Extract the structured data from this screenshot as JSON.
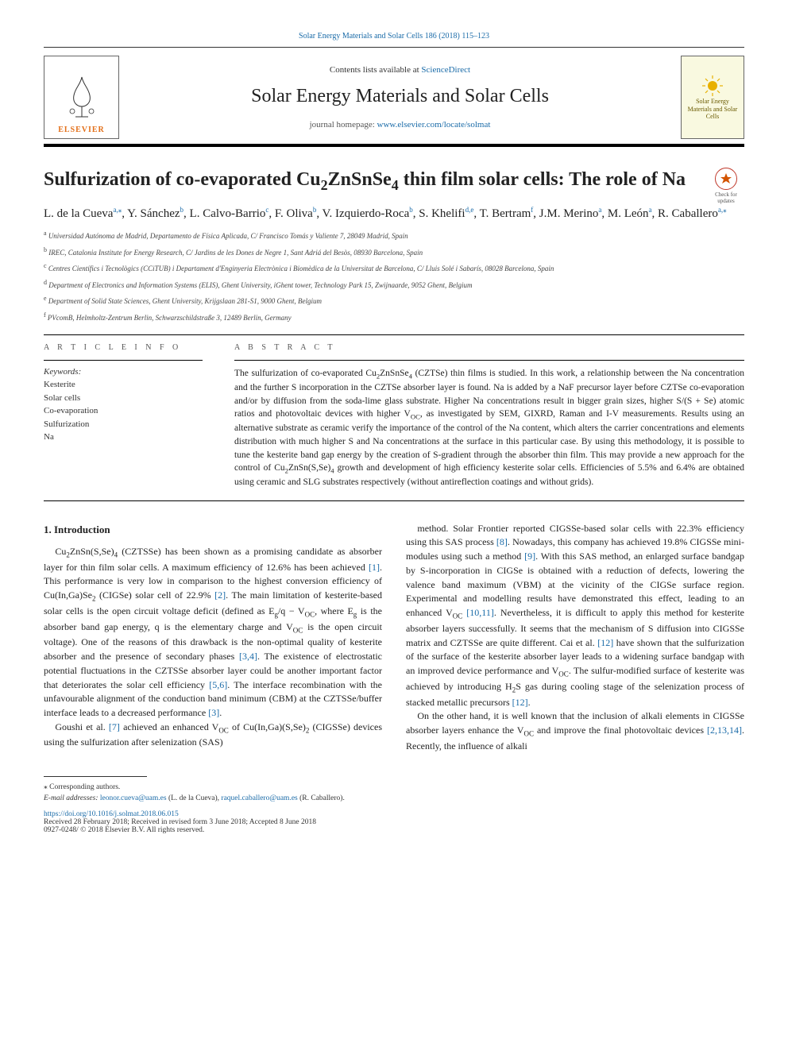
{
  "top_link_full": "Solar Energy Materials and Solar Cells 186 (2018) 115–123",
  "masthead": {
    "publisher": "ELSEVIER",
    "contents_prefix": "Contents lists available at ",
    "contents_link": "ScienceDirect",
    "journal": "Solar Energy Materials and Solar Cells",
    "homepage_prefix": "journal homepage: ",
    "homepage_url": "www.elsevier.com/locate/solmat",
    "cover_label": "Solar Energy Materials and Solar Cells"
  },
  "badge": {
    "text": "Check for updates"
  },
  "title_html": "Sulfurization of co-evaporated Cu<sub>2</sub>ZnSnSe<sub>4</sub> thin film solar cells: The role of Na",
  "authors_html": "L. de la Cueva<sup><a>a,</a>⁎</sup>, Y. Sánchez<sup><a>b</a></sup>, L. Calvo-Barrio<sup><a>c</a></sup>, F. Oliva<sup><a>b</a></sup>, V. Izquierdo-Roca<sup><a>b</a></sup>, S. Khelifi<sup><a>d,e</a></sup>, T. Bertram<sup><a>f</a></sup>, J.M. Merino<sup><a>a</a></sup>, M. León<sup><a>a</a></sup>, R. Caballero<sup><a>a,</a>⁎</sup>",
  "affiliations": [
    {
      "sup": "a",
      "text": "Universidad Autónoma de Madrid, Departamento de Física Aplicada, C/ Francisco Tomás y Valiente 7, 28049 Madrid, Spain"
    },
    {
      "sup": "b",
      "text": "IREC, Catalonia Institute for Energy Research, C/ Jardins de les Dones de Negre 1, Sant Adriá del Besòs, 08930 Barcelona, Spain"
    },
    {
      "sup": "c",
      "text": "Centres Científics i Tecnològics (CCiTUB) i Departament d'Enginyeria Electrònica i Biomèdica de la Universitat de Barcelona, C/ Lluis Solé i Sabarís, 08028 Barcelona, Spain"
    },
    {
      "sup": "d",
      "text": "Department of Electronics and Information Systems (ELIS), Ghent University, iGhent tower, Technology Park 15, Zwijnaarde, 9052 Ghent, Belgium"
    },
    {
      "sup": "e",
      "text": "Department of Solid State Sciences, Ghent University, Krijgslaan 281-S1, 9000 Ghent, Belgium"
    },
    {
      "sup": "f",
      "text": "PVcomB, Helmholtz-Zentrum Berlin, Schwarzschildstraße 3, 12489 Berlin, Germany"
    }
  ],
  "article_info": {
    "heading": "A R T I C L E  I N F O",
    "keywords_label": "Keywords:",
    "keywords": [
      "Kesterite",
      "Solar cells",
      "Co-evaporation",
      "Sulfurization",
      "Na"
    ]
  },
  "abstract": {
    "heading": "A B S T R A C T",
    "text_html": "The sulfurization of co-evaporated Cu<sub>2</sub>ZnSnSe<sub>4</sub> (CZTSe) thin films is studied. In this work, a relationship between the Na concentration and the further S incorporation in the CZTSe absorber layer is found. Na is added by a NaF precursor layer before CZTSe co-evaporation and/or by diffusion from the soda-lime glass substrate. Higher Na concentrations result in bigger grain sizes, higher S/(S + Se) atomic ratios and photovoltaic devices with higher V<sub>OC</sub>, as investigated by SEM, GIXRD, Raman and I-V measurements. Results using an alternative substrate as ceramic verify the importance of the control of the Na content, which alters the carrier concentrations and elements distribution with much higher S and Na concentrations at the surface in this particular case. By using this methodology, it is possible to tune the kesterite band gap energy by the creation of S-gradient through the absorber thin film. This may provide a new approach for the control of Cu<sub>2</sub>ZnSn(S,Se)<sub>4</sub> growth and development of high efficiency kesterite solar cells. Efficiencies of 5.5% and 6.4% are obtained using ceramic and SLG substrates respectively (without antireflection coatings and without grids)."
  },
  "intro": {
    "heading": "1. Introduction",
    "left_paragraphs_html": [
      "Cu<sub>2</sub>ZnSn(S,Se)<sub>4</sub> (CZTSSe) has been shown as a promising candidate as absorber layer for thin film solar cells. A maximum efficiency of 12.6% has been achieved <a class='ref-link'>[1]</a>. This performance is very low in comparison to the highest conversion efficiency of Cu(In,Ga)Se<sub>2</sub> (CIGSe) solar cell of 22.9% <a class='ref-link'>[2]</a>. The main limitation of kesterite-based solar cells is the open circuit voltage deficit (defined as E<sub>g</sub>/q − V<sub>OC</sub>, where E<sub>g</sub> is the absorber band gap energy, q is the elementary charge and V<sub>OC</sub> is the open circuit voltage). One of the reasons of this drawback is the non-optimal quality of kesterite absorber and the presence of secondary phases <a class='ref-link'>[3,4]</a>. The existence of electrostatic potential fluctuations in the CZTSSe absorber layer could be another important factor that deteriorates the solar cell efficiency <a class='ref-link'>[5,6]</a>. The interface recombination with the unfavourable alignment of the conduction band minimum (CBM) at the CZTSSe/buffer interface leads to a decreased performance <a class='ref-link'>[3]</a>.",
      "Goushi et al. <a class='ref-link'>[7]</a> achieved an enhanced V<sub>OC</sub> of Cu(In,Ga)(S,Se)<sub>2</sub> (CIGSSe) devices using the sulfurization after selenization (SAS)"
    ],
    "right_paragraphs_html": [
      "method. Solar Frontier reported CIGSSe-based solar cells with 22.3% efficiency using this SAS process <a class='ref-link'>[8]</a>. Nowadays, this company has achieved 19.8% CIGSSe mini-modules using such a method <a class='ref-link'>[9]</a>. With this SAS method, an enlarged surface bandgap by S-incorporation in CIGSe is obtained with a reduction of defects, lowering the valence band maximum (VBM) at the vicinity of the CIGSe surface region. Experimental and modelling results have demonstrated this effect, leading to an enhanced V<sub>OC</sub> <a class='ref-link'>[10,11]</a>. Nevertheless, it is difficult to apply this method for kesterite absorber layers successfully. It seems that the mechanism of S diffusion into CIGSSe matrix and CZTSSe are quite different. Cai et al. <a class='ref-link'>[12]</a> have shown that the sulfurization of the surface of the kesterite absorber layer leads to a widening surface bandgap with an improved device performance and V<sub>OC</sub>. The sulfur-modified surface of kesterite was achieved by introducing H<sub>2</sub>S gas during cooling stage of the selenization process of stacked metallic precursors <a class='ref-link'>[12]</a>.",
      "On the other hand, it is well known that the inclusion of alkali elements in CIGSSe absorber layers enhance the V<sub>OC</sub> and improve the final photovoltaic devices <a class='ref-link'>[2,13,14]</a>. Recently, the influence of alkali"
    ]
  },
  "footer": {
    "corresponding": "⁎ Corresponding authors.",
    "email_label": "E-mail addresses: ",
    "email1": "leonor.cueva@uam.es",
    "name1": " (L. de la Cueva), ",
    "email2": "raquel.caballero@uam.es",
    "name2": " (R. Caballero).",
    "doi": "https://doi.org/10.1016/j.solmat.2018.06.015",
    "received": "Received 28 February 2018; Received in revised form 3 June 2018; Accepted 8 June 2018",
    "copyright": "0927-0248/ © 2018 Elsevier B.V. All rights reserved."
  },
  "colors": {
    "link": "#1a6ba8",
    "accent_orange": "#e3701a",
    "text": "#1a1a1a",
    "rule": "#000000"
  },
  "typography": {
    "body_font": "Georgia / Times",
    "title_size_pt": 18,
    "journal_size_pt": 18,
    "authors_size_pt": 11,
    "abstract_size_pt": 9,
    "body_size_pt": 9
  }
}
